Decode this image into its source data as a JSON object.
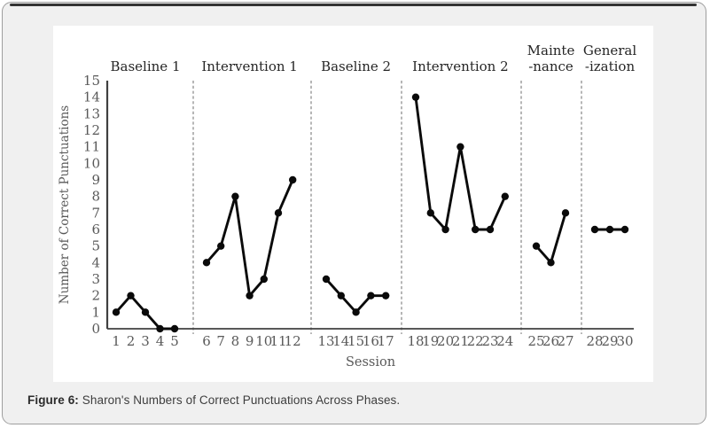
{
  "figure": {
    "caption_label": "Figure 6:",
    "caption_text": "Sharon's Numbers of Correct Punctuations Across Phases."
  },
  "chart_data": {
    "type": "line",
    "title": "",
    "xlabel": "Session",
    "ylabel": "Number of Correct Punctuations",
    "ylim": [
      0,
      15
    ],
    "y_ticks": [
      0,
      1,
      2,
      3,
      4,
      5,
      6,
      7,
      8,
      9,
      10,
      11,
      12,
      13,
      14,
      15
    ],
    "grid": false,
    "legend": "none",
    "marker": "filled-circle",
    "phase_separator_style": "dashed",
    "phases": [
      {
        "name": "Baseline 1",
        "label_lines": [
          "Baseline 1"
        ],
        "sessions": [
          1,
          2,
          3,
          4,
          5
        ],
        "values": [
          1,
          2,
          1,
          0,
          0
        ]
      },
      {
        "name": "Intervention 1",
        "label_lines": [
          "Intervention 1"
        ],
        "sessions": [
          6,
          7,
          8,
          9,
          10,
          11,
          12
        ],
        "values": [
          4,
          5,
          8,
          2,
          3,
          7,
          9
        ]
      },
      {
        "name": "Baseline 2",
        "label_lines": [
          "Baseline 2"
        ],
        "sessions": [
          13,
          14,
          15,
          16,
          17
        ],
        "values": [
          3,
          2,
          1,
          2,
          2
        ]
      },
      {
        "name": "Intervention 2",
        "label_lines": [
          "Intervention 2"
        ],
        "sessions": [
          18,
          19,
          20,
          21,
          22,
          23,
          24
        ],
        "values": [
          14,
          7,
          6,
          11,
          6,
          6,
          8
        ]
      },
      {
        "name": "Maintenance",
        "label_lines": [
          "Mainte",
          "-nance"
        ],
        "sessions": [
          25,
          26,
          27
        ],
        "values": [
          5,
          4,
          7
        ]
      },
      {
        "name": "Generalization",
        "label_lines": [
          "General",
          "-ization"
        ],
        "sessions": [
          28,
          29,
          30
        ],
        "values": [
          6,
          6,
          6
        ]
      }
    ]
  },
  "colors": {
    "card_bg": "#f0f0f0",
    "card_border": "#9e9e9e",
    "top_bar": "#333333",
    "panel_bg": "#ffffff",
    "axis_line": "#404040",
    "tick_text": "#595959",
    "phase_label_text": "#262626",
    "series_line": "#0a0a0a",
    "separator": "#8f8f8f",
    "caption_text": "#3d3d3d"
  }
}
